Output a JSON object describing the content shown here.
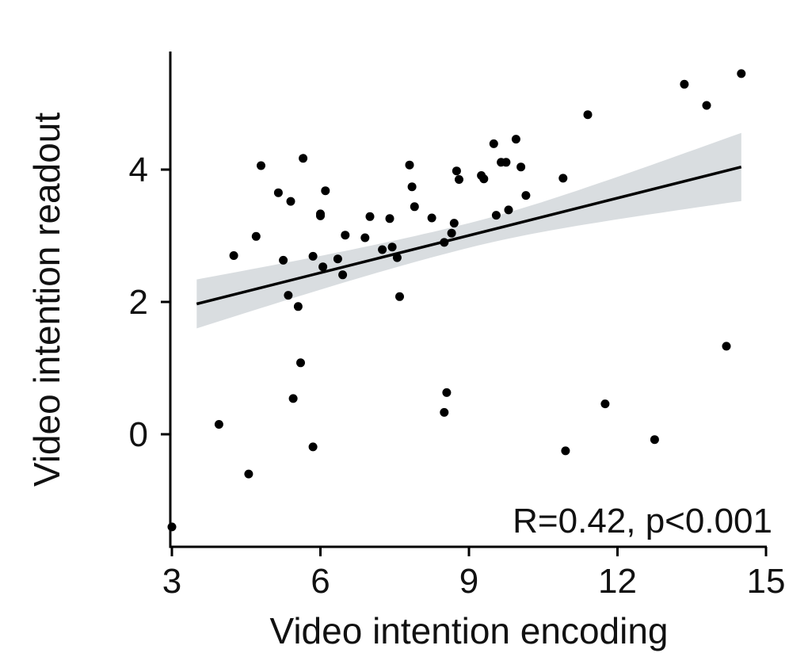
{
  "chart_data": {
    "type": "scatter",
    "xlabel": "Video intention encoding",
    "ylabel": "Video intention readout",
    "xlim": [
      3,
      15
    ],
    "ylim": [
      -1.7,
      5.8
    ],
    "x_ticks": [
      "3",
      "6",
      "9",
      "12",
      "15"
    ],
    "y_ticks": [
      "0",
      "2",
      "4"
    ],
    "annotation": "R=0.42, p<0.001",
    "grid": false,
    "legend": "none",
    "colors": {
      "points": "#000000",
      "fit_line": "#000000",
      "confidence_band": "#d9dde0",
      "axis": "#000000"
    },
    "fit": {
      "x": [
        3.5,
        14.5
      ],
      "y": [
        1.97,
        4.04
      ],
      "ci_lower": [
        1.6,
        3.53
      ],
      "ci_upper": [
        2.34,
        4.56
      ]
    },
    "points": [
      {
        "x": 3.0,
        "y": -1.4
      },
      {
        "x": 3.95,
        "y": 0.15
      },
      {
        "x": 4.25,
        "y": 2.7
      },
      {
        "x": 4.55,
        "y": -0.6
      },
      {
        "x": 4.7,
        "y": 2.99
      },
      {
        "x": 4.8,
        "y": 4.06
      },
      {
        "x": 5.15,
        "y": 3.65
      },
      {
        "x": 5.25,
        "y": 2.63
      },
      {
        "x": 5.35,
        "y": 2.1
      },
      {
        "x": 5.4,
        "y": 3.52
      },
      {
        "x": 5.45,
        "y": 0.54
      },
      {
        "x": 5.55,
        "y": 1.93
      },
      {
        "x": 5.6,
        "y": 1.08
      },
      {
        "x": 5.65,
        "y": 4.17
      },
      {
        "x": 5.85,
        "y": 2.69
      },
      {
        "x": 5.85,
        "y": -0.19
      },
      {
        "x": 6.0,
        "y": 3.3
      },
      {
        "x": 6.0,
        "y": 3.33
      },
      {
        "x": 6.05,
        "y": 2.53
      },
      {
        "x": 6.1,
        "y": 3.68
      },
      {
        "x": 6.35,
        "y": 2.65
      },
      {
        "x": 6.45,
        "y": 2.41
      },
      {
        "x": 6.5,
        "y": 3.01
      },
      {
        "x": 6.9,
        "y": 2.97
      },
      {
        "x": 7.0,
        "y": 3.29
      },
      {
        "x": 7.25,
        "y": 2.79
      },
      {
        "x": 7.4,
        "y": 3.26
      },
      {
        "x": 7.45,
        "y": 2.83
      },
      {
        "x": 7.55,
        "y": 2.67
      },
      {
        "x": 7.6,
        "y": 2.08
      },
      {
        "x": 7.8,
        "y": 4.07
      },
      {
        "x": 7.85,
        "y": 3.74
      },
      {
        "x": 7.9,
        "y": 3.44
      },
      {
        "x": 8.25,
        "y": 3.27
      },
      {
        "x": 8.5,
        "y": 2.9
      },
      {
        "x": 8.5,
        "y": 0.33
      },
      {
        "x": 8.55,
        "y": 0.63
      },
      {
        "x": 8.65,
        "y": 3.04
      },
      {
        "x": 8.7,
        "y": 3.19
      },
      {
        "x": 8.75,
        "y": 3.98
      },
      {
        "x": 8.8,
        "y": 3.85
      },
      {
        "x": 9.25,
        "y": 3.91
      },
      {
        "x": 9.3,
        "y": 3.86
      },
      {
        "x": 9.5,
        "y": 4.39
      },
      {
        "x": 9.55,
        "y": 3.31
      },
      {
        "x": 9.65,
        "y": 4.11
      },
      {
        "x": 9.75,
        "y": 4.11
      },
      {
        "x": 9.8,
        "y": 3.39
      },
      {
        "x": 9.95,
        "y": 4.46
      },
      {
        "x": 10.05,
        "y": 4.04
      },
      {
        "x": 10.15,
        "y": 3.61
      },
      {
        "x": 10.9,
        "y": 3.87
      },
      {
        "x": 10.95,
        "y": -0.25
      },
      {
        "x": 11.4,
        "y": 4.83
      },
      {
        "x": 11.75,
        "y": 0.46
      },
      {
        "x": 12.75,
        "y": -0.08
      },
      {
        "x": 13.35,
        "y": 5.29
      },
      {
        "x": 13.8,
        "y": 4.97
      },
      {
        "x": 14.2,
        "y": 1.33
      },
      {
        "x": 14.5,
        "y": 5.45
      }
    ]
  }
}
